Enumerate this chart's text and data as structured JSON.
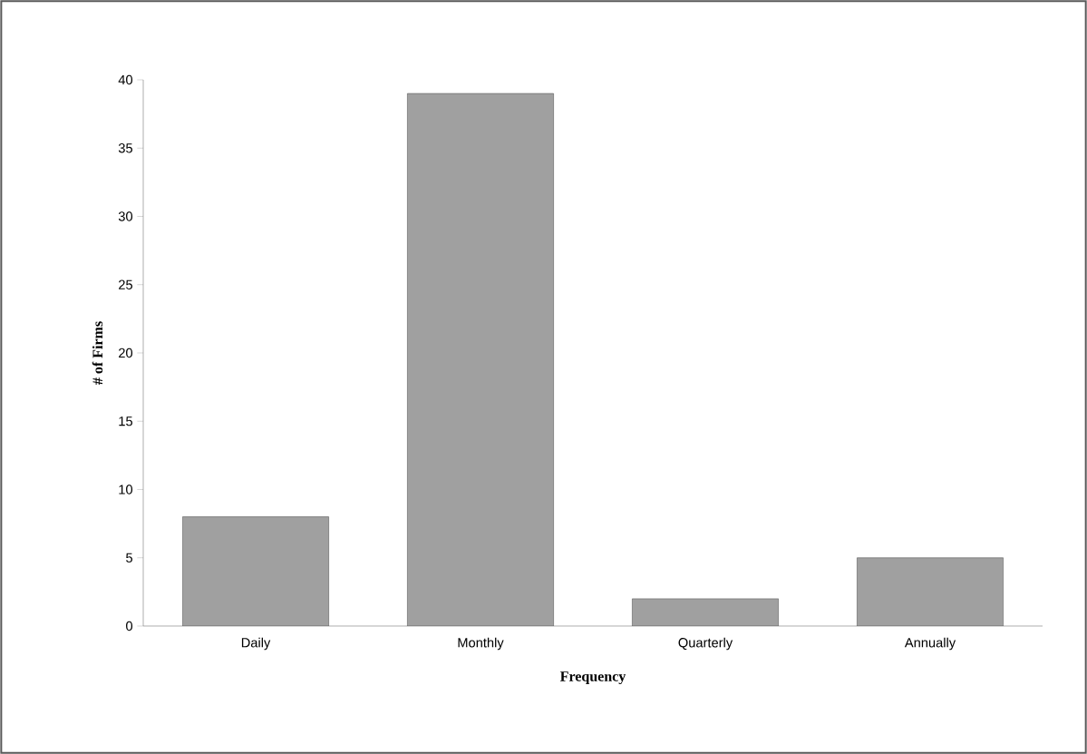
{
  "chart_data": {
    "type": "bar",
    "xlabel": "Frequency",
    "ylabel": "# of Firms",
    "categories": [
      "Daily",
      "Monthly",
      "Quarterly",
      "Annually"
    ],
    "values": [
      8,
      39,
      2,
      5
    ],
    "color": "#a0a0a0",
    "ylim": [
      0,
      40
    ],
    "yticks": [
      0,
      5,
      10,
      15,
      20,
      25,
      30,
      35,
      40
    ]
  }
}
